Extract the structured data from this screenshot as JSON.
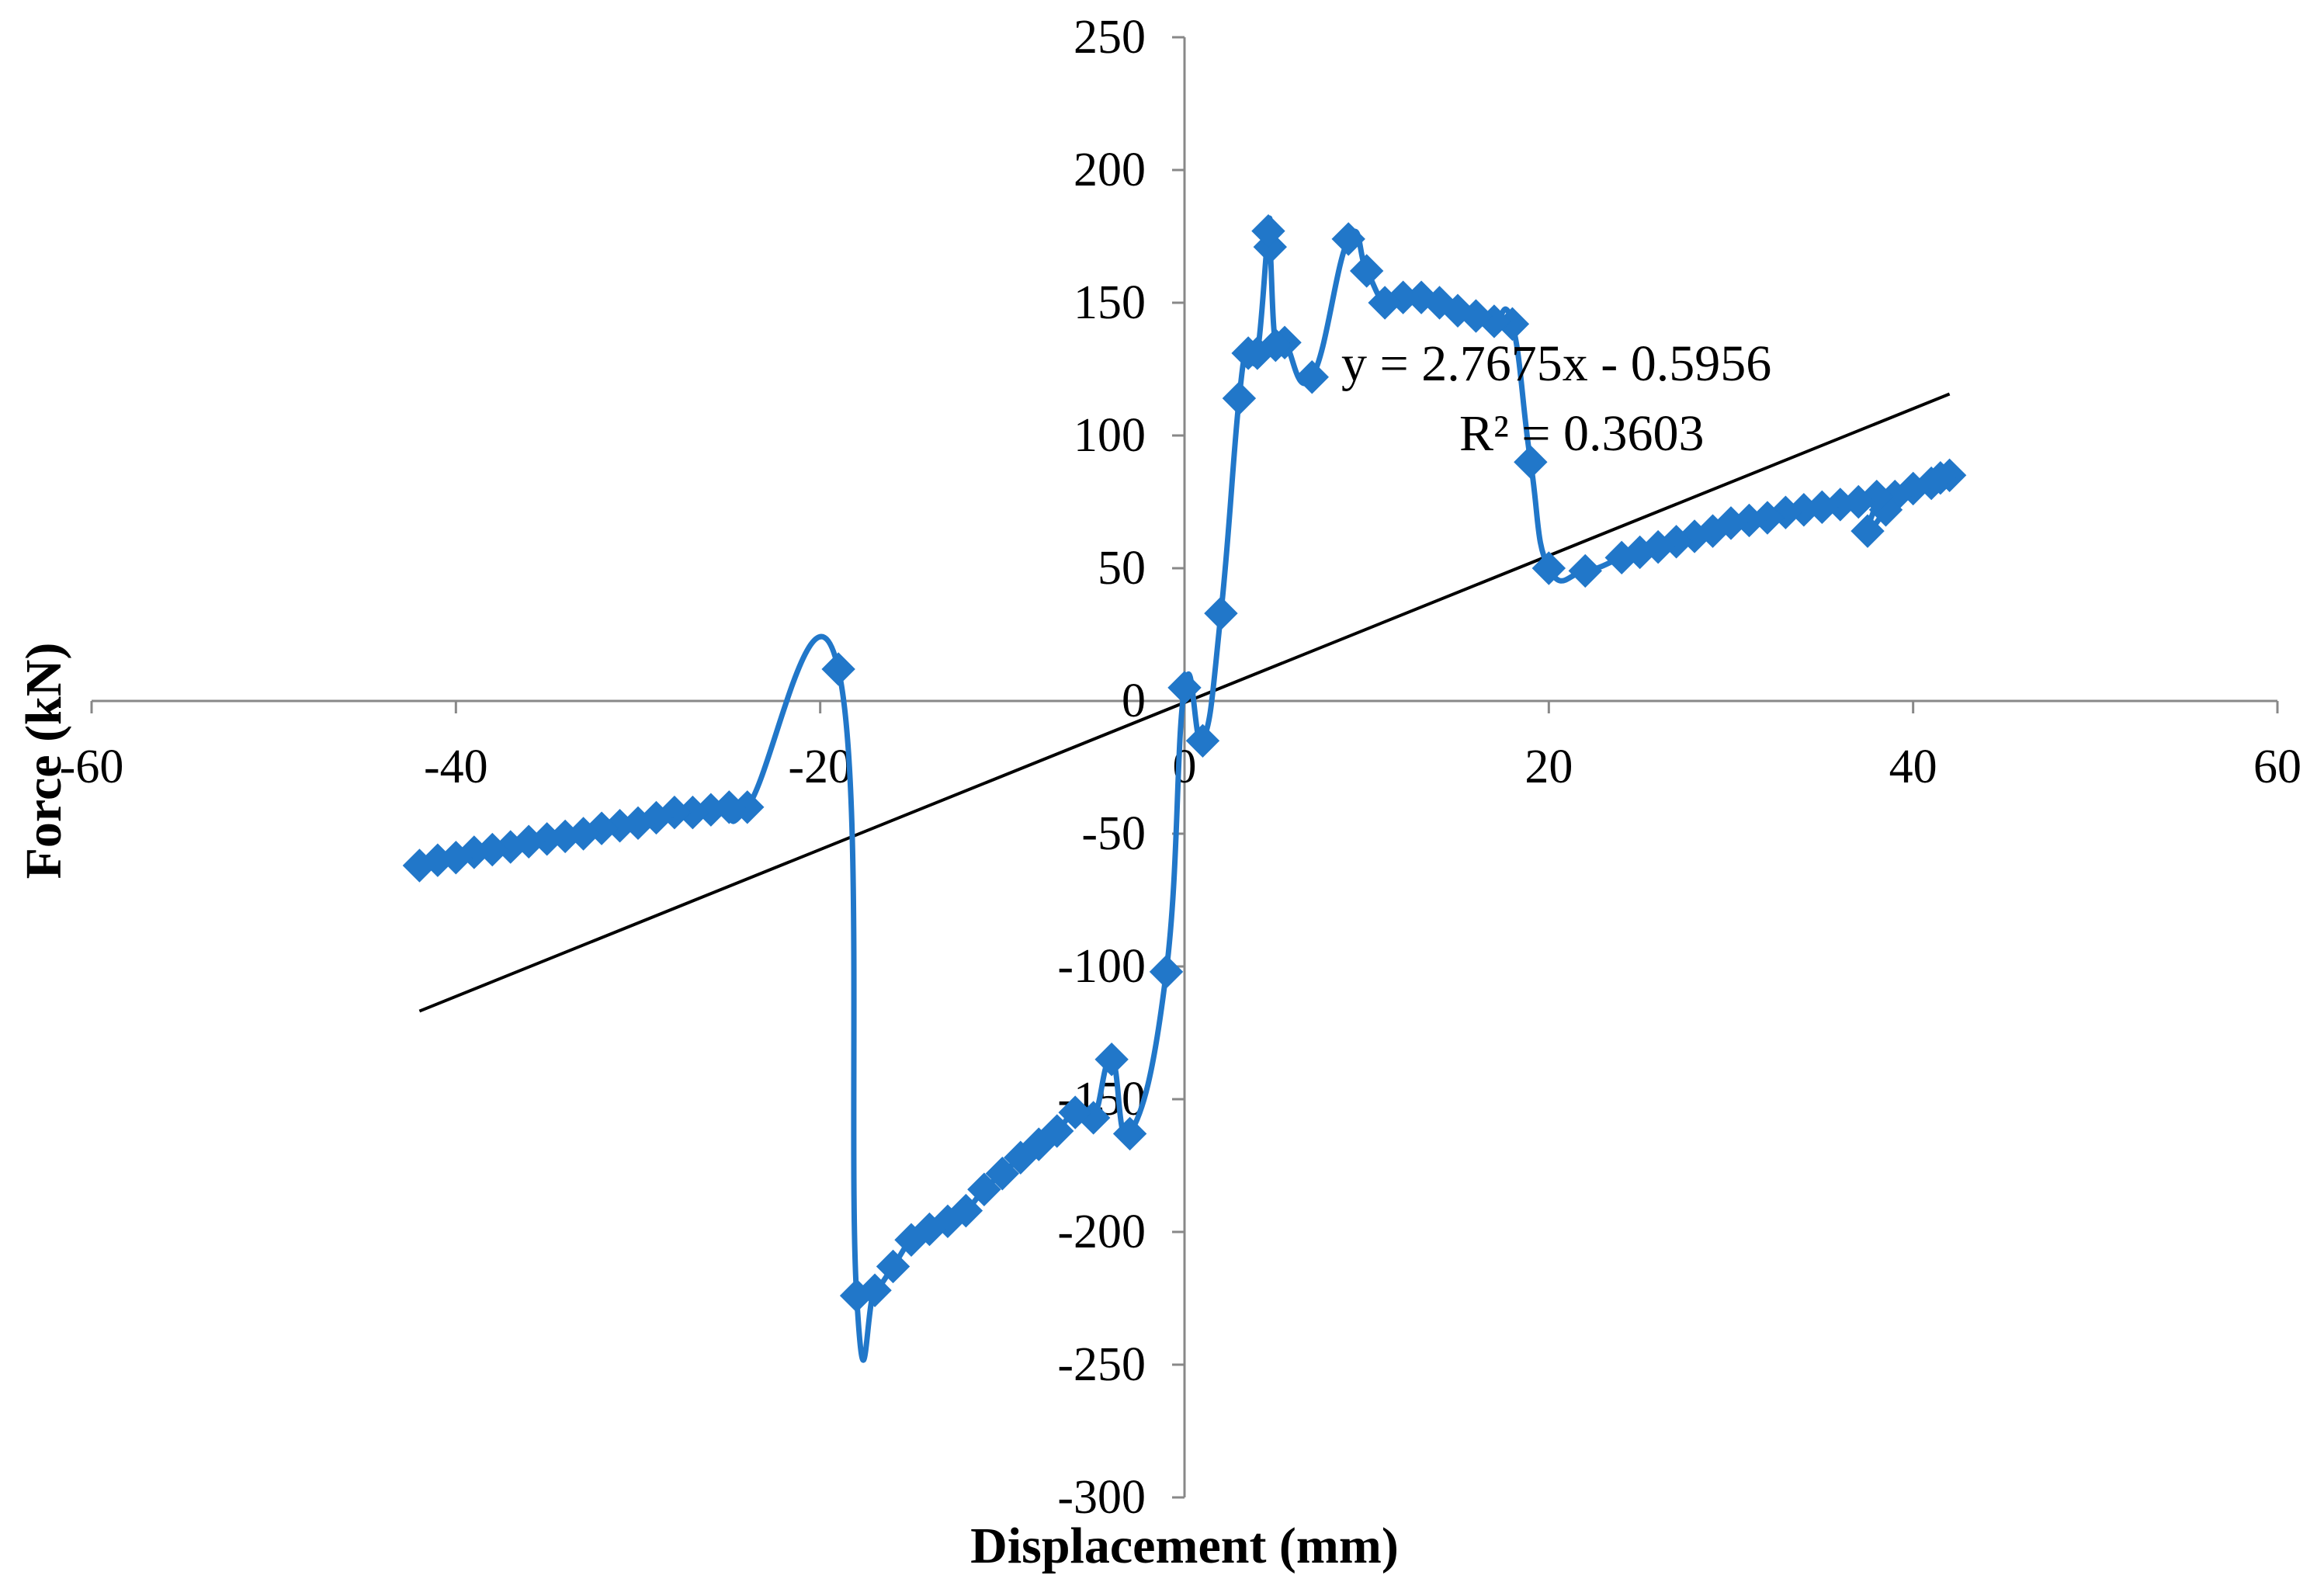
{
  "chart_data": {
    "type": "scatter",
    "title": "",
    "xlabel": "Displacement  (mm)",
    "ylabel": "Force (kN)",
    "xlim": [
      -60,
      60
    ],
    "ylim": [
      -300,
      250
    ],
    "x_ticks": [
      "-60",
      "-40",
      "-20",
      "0",
      "20",
      "40",
      "60"
    ],
    "y_ticks": [
      "250",
      "200",
      "150",
      "100",
      "50",
      "0",
      "-50",
      "-100",
      "-150",
      "-200",
      "-250",
      "-300"
    ],
    "grid": false,
    "legend": "none",
    "colors": {
      "series": "#2177C9",
      "trendline": "#000000",
      "axes": "#888888"
    },
    "series": [
      {
        "marker": "diamond",
        "smooth": true,
        "points": [
          [
            42,
            85
          ],
          [
            41.5,
            84
          ],
          [
            41,
            82
          ],
          [
            40,
            80
          ],
          [
            39,
            77
          ],
          [
            38.5,
            72
          ],
          [
            37.5,
            64
          ],
          [
            38,
            77
          ],
          [
            37,
            75
          ],
          [
            36,
            74
          ],
          [
            35,
            73
          ],
          [
            34,
            72
          ],
          [
            33,
            71
          ],
          [
            32,
            69
          ],
          [
            31,
            68
          ],
          [
            30,
            67
          ],
          [
            29,
            64
          ],
          [
            28,
            62
          ],
          [
            27,
            60
          ],
          [
            26,
            58
          ],
          [
            25,
            56
          ],
          [
            24,
            54
          ],
          [
            22,
            49
          ],
          [
            20,
            50
          ],
          [
            19,
            90
          ],
          [
            18,
            142
          ],
          [
            17,
            143
          ],
          [
            16,
            145
          ],
          [
            15,
            147
          ],
          [
            14,
            150
          ],
          [
            13,
            152
          ],
          [
            12,
            152
          ],
          [
            11,
            150
          ],
          [
            10,
            162
          ],
          [
            9,
            174
          ],
          [
            7,
            122
          ],
          [
            5.5,
            135
          ],
          [
            5,
            134
          ],
          [
            4.7,
            171
          ],
          [
            4.6,
            177
          ],
          [
            4,
            131
          ],
          [
            3.5,
            131
          ],
          [
            3,
            114
          ],
          [
            2,
            33
          ],
          [
            1,
            -15
          ],
          [
            0,
            5
          ],
          [
            -1,
            -102
          ],
          [
            -3,
            -163
          ],
          [
            -4,
            -135
          ],
          [
            -5,
            -157
          ],
          [
            -6,
            -155
          ],
          [
            -7,
            -162
          ],
          [
            -8,
            -167
          ],
          [
            -9,
            -172
          ],
          [
            -10,
            -178
          ],
          [
            -11,
            -184
          ],
          [
            -12,
            -192
          ],
          [
            -13,
            -196
          ],
          [
            -14,
            -199
          ],
          [
            -15,
            -203
          ],
          [
            -16,
            -213
          ],
          [
            -17,
            -222
          ],
          [
            -18,
            -224
          ],
          [
            -19,
            12
          ],
          [
            -24,
            -40
          ],
          [
            -25,
            -40
          ],
          [
            -26,
            -41
          ],
          [
            -27,
            -42
          ],
          [
            -28,
            -42
          ],
          [
            -29,
            -44
          ],
          [
            -30,
            -46
          ],
          [
            -31,
            -47
          ],
          [
            -32,
            -48
          ],
          [
            -33,
            -50
          ],
          [
            -34,
            -51
          ],
          [
            -35,
            -52
          ],
          [
            -36,
            -53
          ],
          [
            -37,
            -55
          ],
          [
            -38,
            -56
          ],
          [
            -39,
            -57
          ],
          [
            -40,
            -59
          ],
          [
            -41,
            -60
          ],
          [
            -42,
            -62
          ]
        ]
      }
    ],
    "trendline": {
      "slope": 2.7675,
      "intercept": -0.5956,
      "x_range": [
        -42,
        42
      ],
      "equation": "y = 2.7675x - 0.5956",
      "r2": "R² = 0.3603"
    }
  }
}
